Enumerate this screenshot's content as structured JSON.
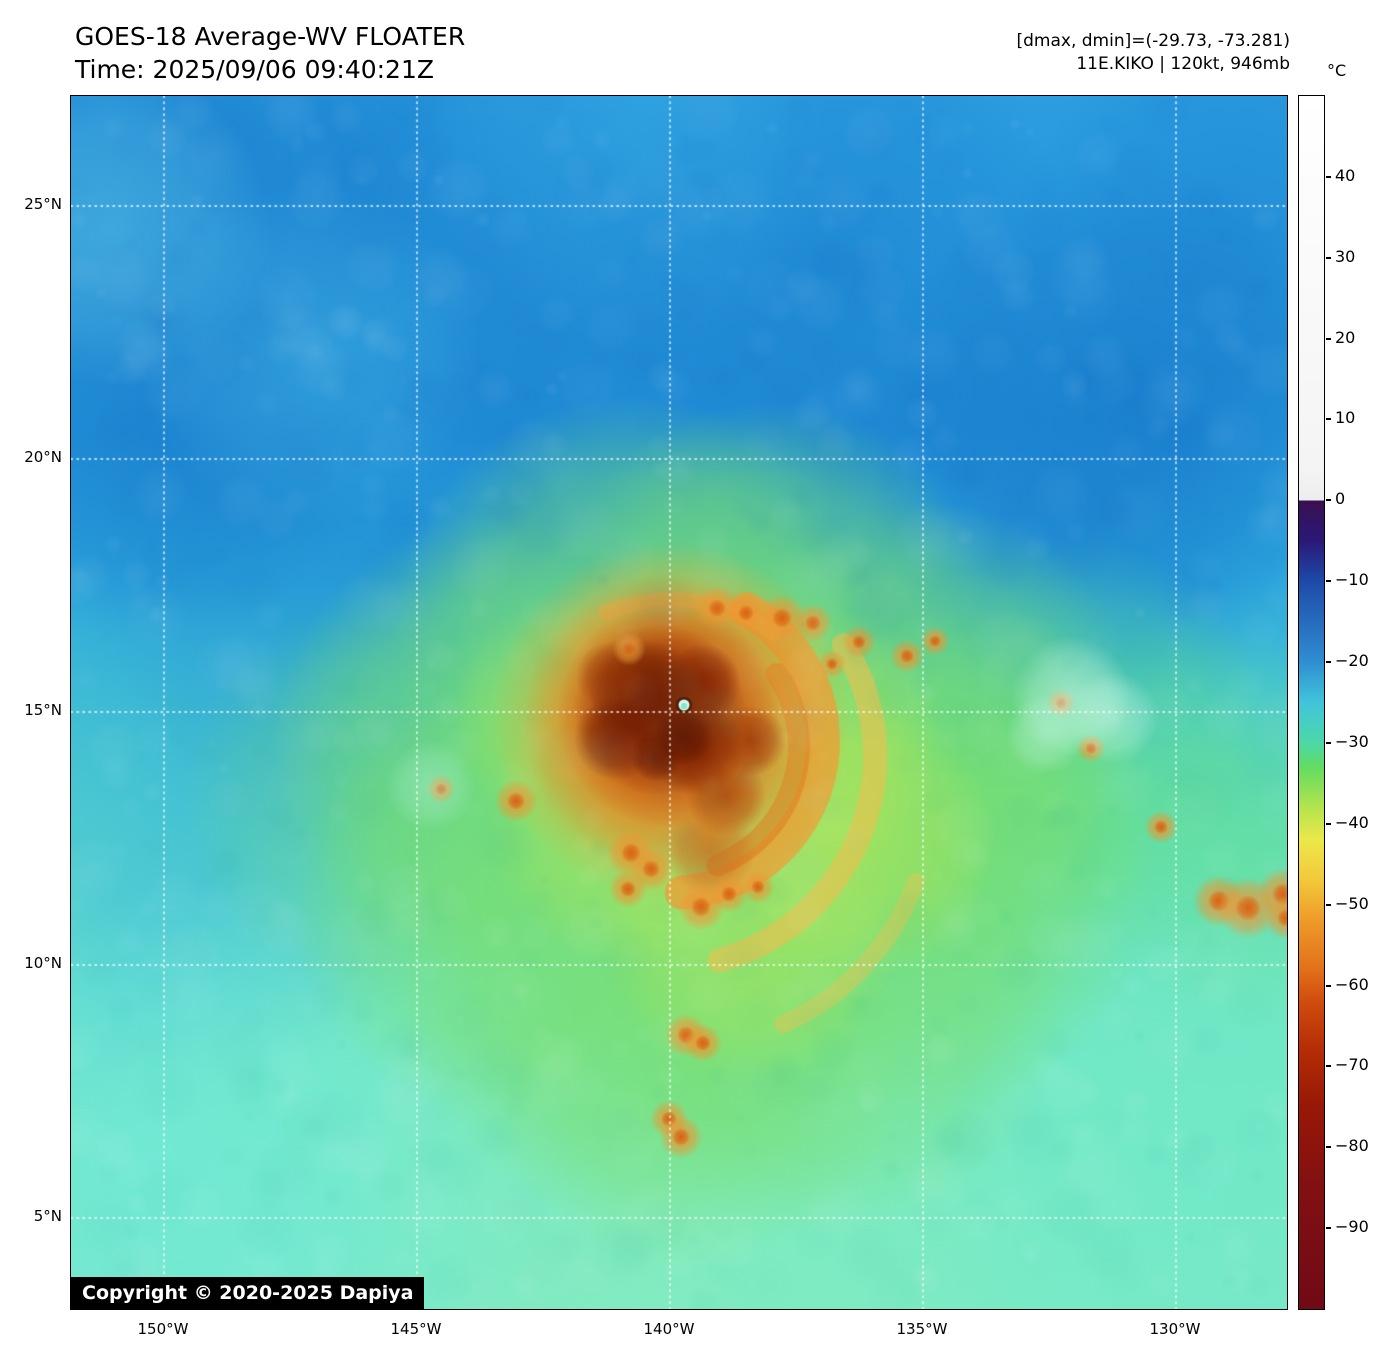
{
  "header": {
    "title": "GOES-18 Average-WV FLOATER",
    "time_line": "Time: 2025/09/06 09:40:21Z",
    "dmax_dmin": "[dmax, dmin]=(-29.73, -73.281)",
    "storm_info": "11E.KIKO | 120kt, 946mb"
  },
  "map": {
    "copyright": "Copyright © 2020-2025 Dapiya",
    "lat_gridlines": [
      {
        "label": "25°N",
        "value": 25
      },
      {
        "label": "20°N",
        "value": 20
      },
      {
        "label": "15°N",
        "value": 15
      },
      {
        "label": "10°N",
        "value": 10
      },
      {
        "label": "5°N",
        "value": 5
      }
    ],
    "lon_gridlines": [
      {
        "label": "150°W",
        "value": 150
      },
      {
        "label": "145°W",
        "value": 145
      },
      {
        "label": "140°W",
        "value": 140
      },
      {
        "label": "135°W",
        "value": 135
      },
      {
        "label": "130°W",
        "value": 130
      }
    ]
  },
  "colorbar": {
    "unit": "°C",
    "range": [
      50,
      -100
    ],
    "ticks": [
      {
        "label": "40",
        "value": 40
      },
      {
        "label": "30",
        "value": 30
      },
      {
        "label": "20",
        "value": 20
      },
      {
        "label": "10",
        "value": 10
      },
      {
        "label": "0",
        "value": 0
      },
      {
        "label": "−10",
        "value": -10
      },
      {
        "label": "−20",
        "value": -20
      },
      {
        "label": "−30",
        "value": -30
      },
      {
        "label": "−40",
        "value": -40
      },
      {
        "label": "−50",
        "value": -50
      },
      {
        "label": "−60",
        "value": -60
      },
      {
        "label": "−70",
        "value": -70
      },
      {
        "label": "−80",
        "value": -80
      },
      {
        "label": "−90",
        "value": -90
      }
    ],
    "palette": [
      {
        "value": 50,
        "color": "#ffffff"
      },
      {
        "value": 4,
        "color": "#f4f4f4"
      },
      {
        "value": 0,
        "color": "#ededed"
      },
      {
        "value": 0,
        "color": "#3a1050"
      },
      {
        "value": -5,
        "color": "#2a1878"
      },
      {
        "value": -10,
        "color": "#1e4aa8"
      },
      {
        "value": -20,
        "color": "#2f8ed2"
      },
      {
        "value": -25,
        "color": "#41c4da"
      },
      {
        "value": -30,
        "color": "#4cd8a8"
      },
      {
        "value": -33,
        "color": "#62dc60"
      },
      {
        "value": -38,
        "color": "#b4e44e"
      },
      {
        "value": -42,
        "color": "#ece84a"
      },
      {
        "value": -47,
        "color": "#f2c83a"
      },
      {
        "value": -52,
        "color": "#ee9a2a"
      },
      {
        "value": -58,
        "color": "#e2701a"
      },
      {
        "value": -62,
        "color": "#d04c0e"
      },
      {
        "value": -68,
        "color": "#b52c06"
      },
      {
        "value": -75,
        "color": "#971806"
      },
      {
        "value": -85,
        "color": "#821012"
      },
      {
        "value": -100,
        "color": "#700a16"
      }
    ]
  }
}
